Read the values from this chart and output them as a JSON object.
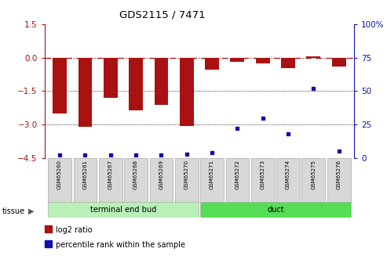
{
  "title": "GDS2115 / 7471",
  "samples": [
    "GSM65260",
    "GSM65261",
    "GSM65267",
    "GSM65268",
    "GSM65269",
    "GSM65270",
    "GSM65271",
    "GSM65272",
    "GSM65273",
    "GSM65274",
    "GSM65275",
    "GSM65276"
  ],
  "log2_ratio": [
    -2.5,
    -3.1,
    -1.8,
    -2.35,
    -2.1,
    -3.05,
    -0.55,
    -0.2,
    -0.25,
    -0.45,
    0.05,
    -0.4
  ],
  "percentile_rank": [
    2,
    2,
    2,
    2,
    2,
    3,
    4,
    22,
    30,
    18,
    52,
    5
  ],
  "tissue_groups": [
    {
      "label": "terminal end bud",
      "start": 0,
      "end": 5,
      "color": "#90EE90"
    },
    {
      "label": "duct",
      "start": 6,
      "end": 11,
      "color": "#66CC66"
    }
  ],
  "ylim_left": [
    -4.5,
    1.5
  ],
  "ylim_right": [
    0,
    100
  ],
  "yticks_left": [
    1.5,
    0,
    -1.5,
    -3,
    -4.5
  ],
  "yticks_right": [
    100,
    75,
    50,
    25,
    0
  ],
  "bar_color": "#AA1111",
  "dot_color": "#1111AA",
  "label_bg": "#d8d8d8",
  "tissue_color_1": "#b8f0b8",
  "tissue_color_2": "#55dd55"
}
